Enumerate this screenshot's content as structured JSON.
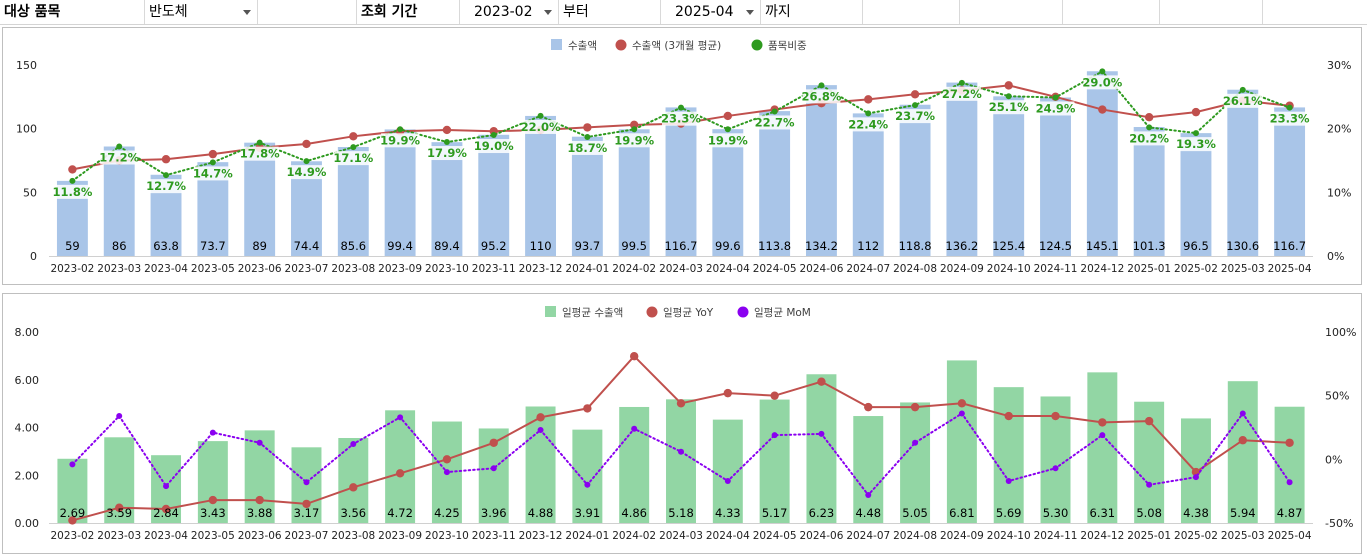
{
  "filters": {
    "item_label": "대상 품목",
    "item_value": "반도체",
    "period_label": "조회 기간",
    "start_value": "2023-02",
    "from_label": "부터",
    "end_value": "2025-04",
    "to_label": "까지"
  },
  "colors": {
    "bar_export": "#a9c5e8",
    "line_avg": "#c0504d",
    "dot_share": "#2e9a1f",
    "bar_daily": "#92d6a4",
    "line_yoy": "#c0504d",
    "dot_mom": "#8a00f0"
  },
  "chart_data": [
    {
      "type": "bar",
      "legend": [
        "수출액",
        "수출액 (3개월 평균)",
        "품목비중"
      ],
      "categories": [
        "2023-02",
        "2023-03",
        "2023-04",
        "2023-05",
        "2023-06",
        "2023-07",
        "2023-08",
        "2023-09",
        "2023-10",
        "2023-11",
        "2023-12",
        "2024-01",
        "2024-02",
        "2024-03",
        "2024-04",
        "2024-05",
        "2024-06",
        "2024-07",
        "2024-08",
        "2024-09",
        "2024-10",
        "2024-11",
        "2024-12",
        "2025-01",
        "2025-02",
        "2025-03",
        "2025-04"
      ],
      "series": [
        {
          "name": "수출액",
          "kind": "bar",
          "axis": "left",
          "values": [
            59,
            86,
            63.8,
            73.7,
            89,
            74.4,
            85.6,
            99.4,
            89.4,
            95.2,
            110,
            93.7,
            99.5,
            116.7,
            99.6,
            113.8,
            134.2,
            112,
            118.8,
            136.2,
            125.4,
            124.5,
            145.1,
            101.3,
            96.5,
            130.6,
            116.7
          ],
          "labels": [
            "59",
            "86",
            "63.8",
            "73.7",
            "89",
            "74.4",
            "85.6",
            "99.4",
            "89.4",
            "95.2",
            "110",
            "93.7",
            "99.5",
            "116.7",
            "99.6",
            "113.8",
            "134.2",
            "112",
            "118.8",
            "136.2",
            "125.4",
            "124.5",
            "145.1",
            "101.3",
            "96.5",
            "130.6",
            "116.7"
          ]
        },
        {
          "name": "수출액 (3개월 평균)",
          "kind": "line",
          "axis": "left",
          "values": [
            68,
            75,
            76,
            80,
            85,
            88,
            94,
            98,
            99,
            98,
            99,
            101,
            103,
            104,
            110,
            115,
            120,
            123,
            127,
            130,
            134,
            125,
            115,
            109,
            113,
            122,
            118
          ]
        },
        {
          "name": "품목비중",
          "kind": "dotted-line",
          "axis": "right",
          "values": [
            11.8,
            17.2,
            12.7,
            14.7,
            17.8,
            14.9,
            17.1,
            19.9,
            17.9,
            19.0,
            22.0,
            18.7,
            19.9,
            23.3,
            19.9,
            22.7,
            26.8,
            22.4,
            23.7,
            27.2,
            25.1,
            24.9,
            29.0,
            20.2,
            19.3,
            26.1,
            23.3
          ],
          "labels": [
            "11.8%",
            "17.2%",
            "12.7%",
            "14.7%",
            "17.8%",
            "14.9%",
            "17.1%",
            "19.9%",
            "17.9%",
            "19.0%",
            "22.0%",
            "18.7%",
            "19.9%",
            "23.3%",
            "19.9%",
            "22.7%",
            "26.8%",
            "22.4%",
            "23.7%",
            "27.2%",
            "25.1%",
            "24.9%",
            "29.0%",
            "20.2%",
            "19.3%",
            "26.1%",
            "23.3%"
          ]
        }
      ],
      "y_left": {
        "min": 0,
        "max": 150,
        "ticks": [
          0,
          50,
          100,
          150
        ],
        "tick_labels": [
          "0",
          "50",
          "100",
          "150"
        ]
      },
      "y_right": {
        "min": 0,
        "max": 30,
        "ticks": [
          0,
          10,
          20,
          30
        ],
        "tick_labels": [
          "0%",
          "10%",
          "20%",
          "30%"
        ]
      },
      "legend_position": "top-center",
      "grid": false
    },
    {
      "type": "bar",
      "legend": [
        "일평균 수출액",
        "일평균 YoY",
        "일평균 MoM"
      ],
      "categories": [
        "2023-02",
        "2023-03",
        "2023-04",
        "2023-05",
        "2023-06",
        "2023-07",
        "2023-08",
        "2023-09",
        "2023-10",
        "2023-11",
        "2023-12",
        "2024-01",
        "2024-02",
        "2024-03",
        "2024-04",
        "2024-05",
        "2024-06",
        "2024-07",
        "2024-08",
        "2024-09",
        "2024-10",
        "2024-11",
        "2024-12",
        "2025-01",
        "2025-02",
        "2025-03",
        "2025-04"
      ],
      "series": [
        {
          "name": "일평균 수출액",
          "kind": "bar",
          "axis": "left",
          "values": [
            2.69,
            3.59,
            2.84,
            3.43,
            3.88,
            3.17,
            3.56,
            4.72,
            4.25,
            3.96,
            4.88,
            3.91,
            4.86,
            5.18,
            4.33,
            5.17,
            6.23,
            4.48,
            5.05,
            6.81,
            5.69,
            5.3,
            6.31,
            5.08,
            4.38,
            5.94,
            4.87
          ],
          "labels": [
            "2.69",
            "3.59",
            "2.84",
            "3.43",
            "3.88",
            "3.17",
            "3.56",
            "4.72",
            "4.25",
            "3.96",
            "4.88",
            "3.91",
            "4.86",
            "5.18",
            "4.33",
            "5.17",
            "6.23",
            "4.48",
            "5.05",
            "6.81",
            "5.69",
            "5.30",
            "6.31",
            "5.08",
            "4.38",
            "5.94",
            "4.87"
          ]
        },
        {
          "name": "일평균 YoY",
          "kind": "line",
          "axis": "right",
          "values": [
            -48,
            -38,
            -39,
            -32,
            -32,
            -35,
            -22,
            -11,
            0,
            13,
            33,
            40,
            81,
            44,
            52,
            50,
            61,
            41,
            41,
            44,
            34,
            34,
            29,
            30,
            -10,
            15,
            13
          ]
        },
        {
          "name": "일평균 MoM",
          "kind": "dotted-line",
          "axis": "right",
          "values": [
            -4,
            34,
            -21,
            21,
            13,
            -18,
            12,
            33,
            -10,
            -7,
            23,
            -20,
            24,
            6,
            -17,
            19,
            20,
            -28,
            13,
            36,
            -17,
            -7,
            19,
            -20,
            -14,
            36,
            -18
          ]
        }
      ],
      "y_left": {
        "min": 0,
        "max": 8,
        "ticks": [
          0,
          2,
          4,
          6,
          8
        ],
        "tick_labels": [
          "0.00",
          "2.00",
          "4.00",
          "6.00",
          "8.00"
        ]
      },
      "y_right": {
        "min": -50,
        "max": 100,
        "ticks": [
          -50,
          0,
          50,
          100
        ],
        "tick_labels": [
          "-50%",
          "0%",
          "50%",
          "100%"
        ]
      },
      "legend_position": "top-center",
      "grid": false
    }
  ]
}
